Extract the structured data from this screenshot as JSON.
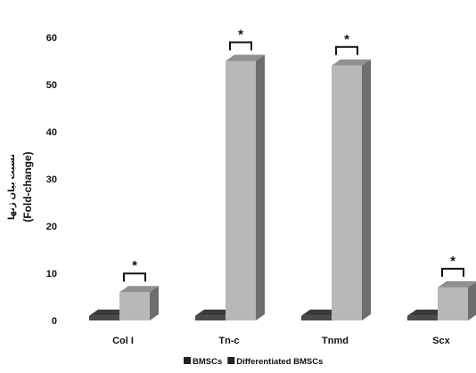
{
  "chart_data": {
    "type": "bar",
    "style": "3d-clustered-column",
    "categories": [
      "Col I",
      "Tn-c",
      "Tnmd",
      "Scx"
    ],
    "series": [
      {
        "name": "BMSCs",
        "values": [
          1,
          1,
          1,
          1
        ],
        "color": "#4a4a4a"
      },
      {
        "name": "Differentiated BMSCs",
        "values": [
          6,
          55,
          54,
          7
        ],
        "color": "#b8b8b8"
      }
    ],
    "significance_marker": "*",
    "significant": [
      true,
      true,
      true,
      true
    ],
    "ylabel": "(Fold-change)",
    "ylabel_secondary": "نسبت بیان ژنها",
    "ylim": [
      0,
      60
    ],
    "yticks": [
      0,
      10,
      20,
      30,
      40,
      50,
      60
    ],
    "grid": false,
    "legend_position": "bottom-center"
  }
}
